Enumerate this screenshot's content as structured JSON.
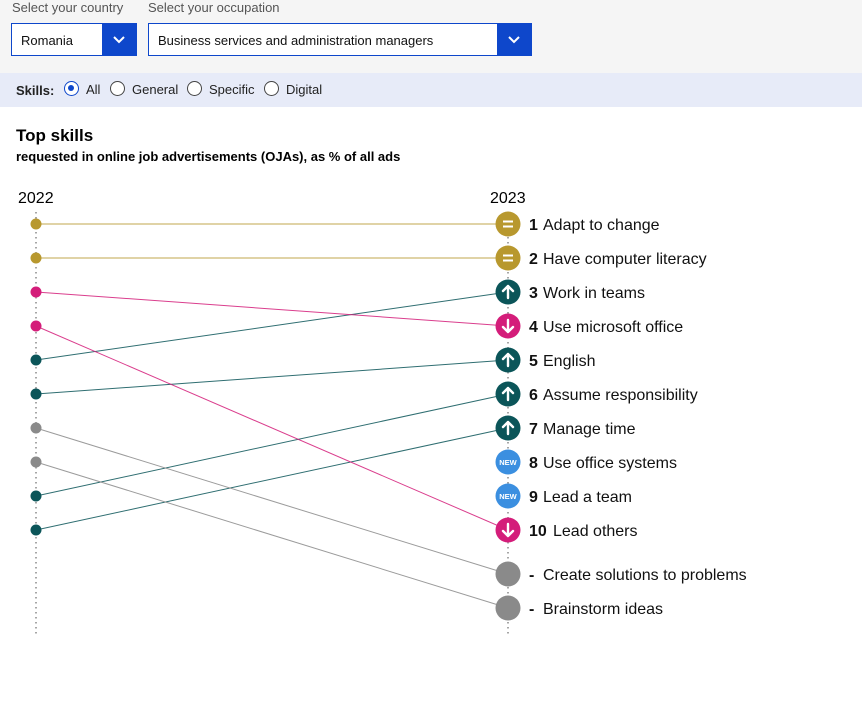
{
  "filters": {
    "country_label": "Select your country",
    "country_value": "Romania",
    "occupation_label": "Select your occupation",
    "occupation_value": "Business services and administration managers"
  },
  "skills_filter": {
    "label": "Skills:",
    "options": [
      {
        "label": "All",
        "selected": true
      },
      {
        "label": "General",
        "selected": false
      },
      {
        "label": "Specific",
        "selected": false
      },
      {
        "label": "Digital",
        "selected": false
      }
    ]
  },
  "chart": {
    "title": "Top skills",
    "subtitle": "requested in online job advertisements (OJAs), as % of all ads",
    "year_left": "2022",
    "year_right": "2023"
  },
  "colors": {
    "same": "#b8982e",
    "down": "#d41d7a",
    "up": "#0b5559",
    "out": "#8a8a8a",
    "new": "#3b8fe0",
    "accent": "#0e47cb"
  },
  "chart_data": {
    "type": "slope",
    "ranks_2022": 10,
    "skills": [
      {
        "name": "Adapt to change",
        "rank_2023": "1",
        "rank_2022": 1,
        "status": "same",
        "icon": "equals-icon"
      },
      {
        "name": "Have computer literacy",
        "rank_2023": "2",
        "rank_2022": 2,
        "status": "same",
        "icon": "equals-icon"
      },
      {
        "name": "Work in teams",
        "rank_2023": "3",
        "rank_2022": 5,
        "status": "up",
        "icon": "arrow-up-icon"
      },
      {
        "name": "Use microsoft office",
        "rank_2023": "4",
        "rank_2022": 3,
        "status": "down",
        "icon": "arrow-down-icon"
      },
      {
        "name": "English",
        "rank_2023": "5",
        "rank_2022": 6,
        "status": "up",
        "icon": "arrow-up-icon"
      },
      {
        "name": "Assume responsibility",
        "rank_2023": "6",
        "rank_2022": 9,
        "status": "up",
        "icon": "arrow-up-icon"
      },
      {
        "name": "Manage time",
        "rank_2023": "7",
        "rank_2022": 10,
        "status": "up",
        "icon": "arrow-up-icon"
      },
      {
        "name": "Use office systems",
        "rank_2023": "8",
        "rank_2022": null,
        "status": "new",
        "icon": "new-badge-icon",
        "badge": "NEW"
      },
      {
        "name": "Lead a team",
        "rank_2023": "9",
        "rank_2022": null,
        "status": "new",
        "icon": "new-badge-icon",
        "badge": "NEW"
      },
      {
        "name": "Lead others",
        "rank_2023": "10",
        "rank_2022": 4,
        "status": "down",
        "icon": "arrow-down-icon"
      },
      {
        "name": "Create solutions to problems",
        "rank_2023": "-",
        "rank_2022": 7,
        "status": "out",
        "icon": "grey-dot-icon"
      },
      {
        "name": "Brainstorm ideas",
        "rank_2023": "-",
        "rank_2022": 8,
        "status": "out",
        "icon": "grey-dot-icon"
      }
    ]
  }
}
